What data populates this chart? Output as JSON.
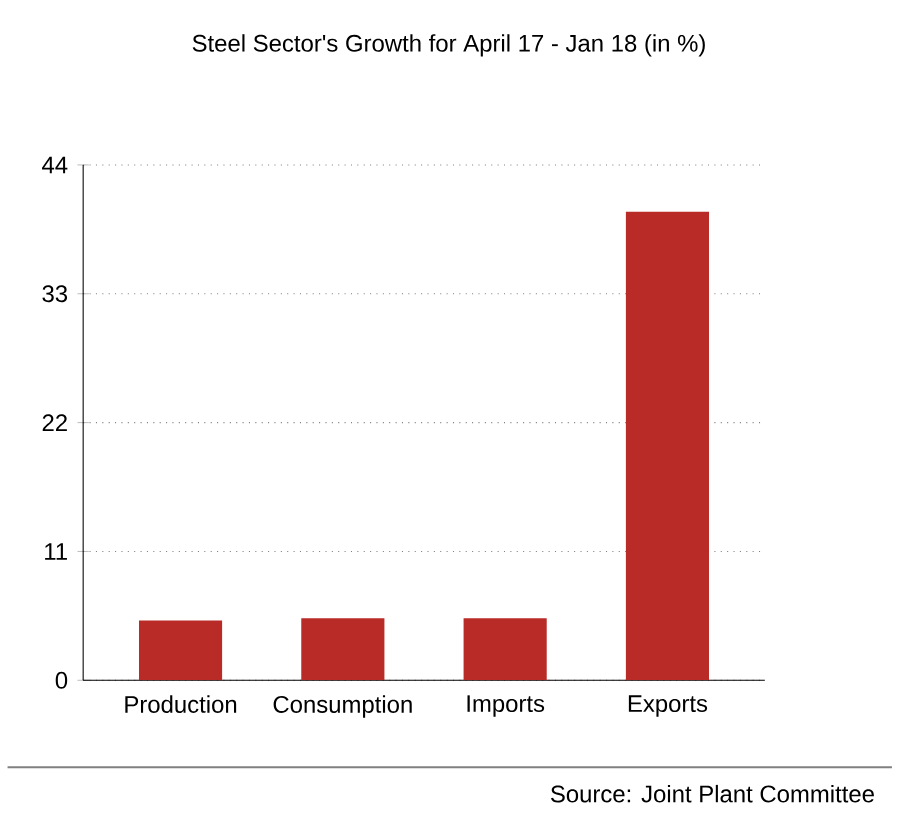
{
  "chart_data": {
    "type": "bar",
    "title": "Steel Sector's Growth for April 17 - Jan 18 (in %)",
    "categories": [
      "Production",
      "Consumption",
      "Imports",
      "Exports"
    ],
    "values": [
      5.1,
      5.3,
      5.3,
      40
    ],
    "color": "#b92b27",
    "ylim": [
      0,
      44
    ],
    "yticks": [
      0,
      11,
      22,
      33,
      44
    ],
    "grid": "y",
    "annotations": [
      "Source: Joint Plant Committee"
    ]
  }
}
